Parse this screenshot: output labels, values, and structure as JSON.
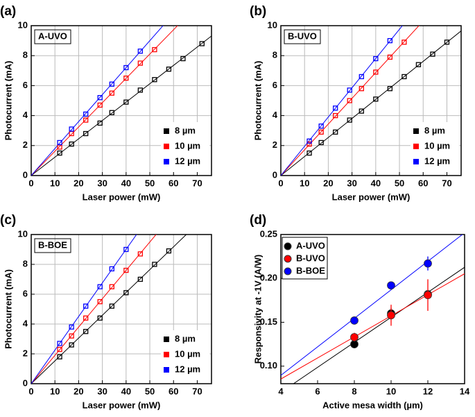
{
  "chart_data": [
    {
      "type": "line",
      "panel_label": "(a)",
      "annotation": "A-UVO",
      "xlabel": "Laser power (mW)",
      "ylabel": "Photocurrent (mA)",
      "xlim": [
        0,
        76
      ],
      "xticks": [
        0,
        10,
        20,
        30,
        40,
        50,
        60,
        70
      ],
      "ylim": [
        0,
        10
      ],
      "yticks": [
        0,
        2,
        4,
        6,
        8,
        10
      ],
      "grid": true,
      "legend": "lower right",
      "series": [
        {
          "name": "8 µm",
          "color": "#000000",
          "x": [
            12,
            17,
            23,
            29,
            34,
            40,
            46,
            52,
            58,
            64,
            72
          ],
          "values": [
            1.5,
            2.1,
            2.8,
            3.5,
            4.2,
            4.9,
            5.7,
            6.4,
            7.1,
            7.8,
            8.8
          ]
        },
        {
          "name": "10 µm",
          "color": "#ff0000",
          "x": [
            12,
            17,
            23,
            29,
            34,
            40,
            46,
            52
          ],
          "values": [
            1.9,
            2.8,
            3.7,
            4.7,
            5.5,
            6.5,
            7.5,
            8.4
          ]
        },
        {
          "name": "12 µm",
          "color": "#0000ff",
          "x": [
            12,
            17,
            23,
            29,
            34,
            40,
            46
          ],
          "values": [
            2.2,
            3.1,
            4.1,
            5.2,
            6.1,
            7.2,
            8.3
          ]
        }
      ]
    },
    {
      "type": "line",
      "panel_label": "(b)",
      "annotation": "B-UVO",
      "xlabel": "Laser power (mW)",
      "ylabel": "Photocurrent (mA)",
      "xlim": [
        0,
        76
      ],
      "xticks": [
        0,
        10,
        20,
        30,
        40,
        50,
        60,
        70
      ],
      "ylim": [
        0,
        10
      ],
      "yticks": [
        0,
        2,
        4,
        6,
        8,
        10
      ],
      "grid": true,
      "legend": "lower right",
      "series": [
        {
          "name": "8 µm",
          "color": "#000000",
          "x": [
            12,
            17,
            23,
            29,
            34,
            40,
            46,
            52,
            58,
            64,
            70
          ],
          "values": [
            1.5,
            2.2,
            2.9,
            3.7,
            4.3,
            5.1,
            5.8,
            6.6,
            7.4,
            8.1,
            8.9
          ]
        },
        {
          "name": "10 µm",
          "color": "#ff0000",
          "x": [
            12,
            17,
            23,
            29,
            34,
            40,
            46,
            52
          ],
          "values": [
            2.1,
            2.9,
            4.0,
            5.0,
            5.8,
            6.9,
            7.9,
            8.9
          ]
        },
        {
          "name": "12 µm",
          "color": "#0000ff",
          "x": [
            12,
            17,
            23,
            29,
            34,
            40,
            46
          ],
          "values": [
            2.3,
            3.3,
            4.5,
            5.7,
            6.6,
            7.8,
            9.0
          ]
        }
      ]
    },
    {
      "type": "line",
      "panel_label": "(c)",
      "annotation": "B-BOE",
      "xlabel": "Laser power (mW)",
      "ylabel": "Photocurrent (mA)",
      "xlim": [
        0,
        76
      ],
      "xticks": [
        0,
        10,
        20,
        30,
        40,
        50,
        60,
        70
      ],
      "ylim": [
        0,
        10
      ],
      "yticks": [
        0,
        2,
        4,
        6,
        8,
        10
      ],
      "grid": true,
      "legend": "lower right",
      "series": [
        {
          "name": "8 µm",
          "color": "#000000",
          "x": [
            12,
            17,
            23,
            29,
            34,
            40,
            46,
            52,
            58
          ],
          "values": [
            1.8,
            2.6,
            3.5,
            4.4,
            5.2,
            6.1,
            7.0,
            8.0,
            8.9
          ]
        },
        {
          "name": "10 µm",
          "color": "#ff0000",
          "x": [
            12,
            17,
            23,
            29,
            34,
            40,
            46
          ],
          "values": [
            2.3,
            3.2,
            4.4,
            5.5,
            6.5,
            7.6,
            8.7
          ]
        },
        {
          "name": "12 µm",
          "color": "#0000ff",
          "x": [
            12,
            17,
            23,
            29,
            34,
            40
          ],
          "values": [
            2.7,
            3.8,
            5.2,
            6.5,
            7.7,
            9.0
          ]
        }
      ]
    },
    {
      "type": "scatter",
      "panel_label": "(d)",
      "xlabel": "Active mesa width (µm)",
      "ylabel": "Responsivity at -1V (A/W)",
      "xlim": [
        4,
        14
      ],
      "xticks": [
        4,
        6,
        8,
        10,
        12,
        14
      ],
      "ylim": [
        0.08,
        0.25
      ],
      "yticks": [
        {
          "value": 0.1,
          "label": "0.10"
        },
        0.15,
        {
          "value": 0.2,
          "label": "0.20"
        },
        0.25
      ],
      "grid": false,
      "legend": "upper left",
      "series": [
        {
          "name": "A-UVO",
          "color": "#000000",
          "x": [
            8,
            10,
            12
          ],
          "values": [
            0.125,
            0.16,
            0.182
          ],
          "errors": [
            0.004,
            0.006,
            0.004
          ]
        },
        {
          "name": "B-UVO",
          "color": "#ff0000",
          "x": [
            8,
            10,
            12
          ],
          "values": [
            0.133,
            0.158,
            0.181
          ],
          "errors": [
            0.005,
            0.012,
            0.018
          ]
        },
        {
          "name": "B-BOE",
          "color": "#0000ff",
          "x": [
            8,
            10,
            12
          ],
          "values": [
            0.152,
            0.192,
            0.217
          ],
          "errors": [
            0.003,
            0.003,
            0.008
          ]
        }
      ]
    }
  ]
}
